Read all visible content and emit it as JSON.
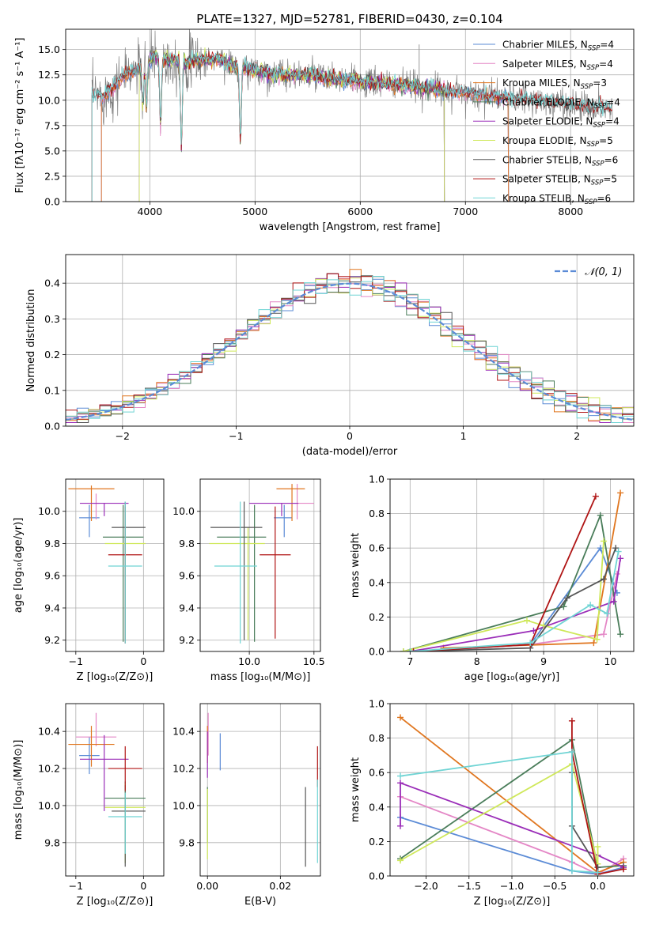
{
  "series_styles": [
    {
      "name": "Chabrier MILES",
      "color": "#5b8bd6"
    },
    {
      "name": "Salpeter MILES",
      "color": "#e487c6"
    },
    {
      "name": "Kroupa MILES",
      "color": "#e0761f"
    },
    {
      "name": "Chabrier ELODIE",
      "color": "#4a7d5a"
    },
    {
      "name": "Salpeter ELODIE",
      "color": "#9a2db8"
    },
    {
      "name": "Kroupa ELODIE",
      "color": "#cfe85a"
    },
    {
      "name": "Chabrier STELIB",
      "color": "#555555"
    },
    {
      "name": "Salpeter STELIB",
      "color": "#b01515"
    },
    {
      "name": "Kroupa STELIB",
      "color": "#6fd4d4"
    }
  ],
  "chart_data": [
    {
      "id": "spectrum",
      "type": "line",
      "title": "PLATE=1327, MJD=52781, FIBERID=0430, z=0.104",
      "xlabel": "wavelength [Angstrom, rest frame]",
      "ylabel": "Flux [fλ10⁻¹⁷ erg cm⁻² s⁻¹ A⁻¹]",
      "xlim": [
        3200,
        8600
      ],
      "ylim": [
        0,
        17
      ],
      "xticks": [
        4000,
        5000,
        6000,
        7000,
        8000
      ],
      "yticks": [
        0.0,
        2.5,
        5.0,
        7.5,
        10.0,
        12.5,
        15.0
      ],
      "legend_position": "top-right",
      "legend": [
        {
          "base": "Chabrier MILES, N",
          "sub": "SSP",
          "tail": "=4"
        },
        {
          "base": "Salpeter MILES, N",
          "sub": "SSP",
          "tail": "=4"
        },
        {
          "base": "Kroupa MILES, N",
          "sub": "SSP",
          "tail": "=3"
        },
        {
          "base": "Chabrier ELODIE, N",
          "sub": "SSP",
          "tail": "=4"
        },
        {
          "base": "Salpeter ELODIE, N",
          "sub": "SSP",
          "tail": "=4"
        },
        {
          "base": "Kroupa ELODIE, N",
          "sub": "SSP",
          "tail": "=5"
        },
        {
          "base": "Chabrier STELIB, N",
          "sub": "SSP",
          "tail": "=6"
        },
        {
          "base": "Salpeter STELIB, N",
          "sub": "SSP",
          "tail": "=5"
        },
        {
          "base": "Kroupa STELIB, N",
          "sub": "SSP",
          "tail": "=6"
        }
      ],
      "continuum": [
        [
          3450,
          10.6
        ],
        [
          3550,
          10.3
        ],
        [
          3650,
          11.2
        ],
        [
          3750,
          12.4
        ],
        [
          3850,
          12.8
        ],
        [
          3950,
          13.6
        ],
        [
          4050,
          14.3
        ],
        [
          4150,
          14.0
        ],
        [
          4250,
          13.9
        ],
        [
          4350,
          13.7
        ],
        [
          4450,
          14.0
        ],
        [
          4550,
          13.9
        ],
        [
          4650,
          14.1
        ],
        [
          4750,
          13.6
        ],
        [
          4850,
          13.2
        ],
        [
          4950,
          13.1
        ],
        [
          5050,
          12.9
        ],
        [
          5150,
          12.5
        ],
        [
          5250,
          12.6
        ],
        [
          5350,
          12.5
        ],
        [
          5450,
          12.5
        ],
        [
          5550,
          12.4
        ],
        [
          5650,
          12.2
        ],
        [
          5750,
          12.2
        ],
        [
          5850,
          12.0
        ],
        [
          5950,
          11.9
        ],
        [
          6050,
          11.7
        ],
        [
          6150,
          11.7
        ],
        [
          6250,
          11.6
        ],
        [
          6350,
          11.5
        ],
        [
          6450,
          11.4
        ],
        [
          6550,
          11.3
        ],
        [
          6650,
          11.1
        ],
        [
          6750,
          11.1
        ],
        [
          6850,
          10.9
        ],
        [
          6950,
          10.8
        ],
        [
          7050,
          10.7
        ],
        [
          7150,
          10.5
        ],
        [
          7250,
          10.4
        ],
        [
          7350,
          10.3
        ],
        [
          7450,
          10.2
        ],
        [
          7550,
          10.1
        ],
        [
          7650,
          9.9
        ],
        [
          7750,
          9.8
        ],
        [
          7850,
          9.7
        ],
        [
          7950,
          9.6
        ],
        [
          8050,
          9.5
        ],
        [
          8150,
          9.4
        ],
        [
          8250,
          9.3
        ],
        [
          8350,
          9.2
        ]
      ],
      "absorption_features": [
        [
          3934,
          4.5
        ],
        [
          3969,
          5.0
        ],
        [
          4102,
          7.5
        ],
        [
          4861,
          8.5
        ],
        [
          4300,
          9.5
        ]
      ],
      "model_coverage": {
        "MILES": [
          3540,
          7410
        ],
        "ELODIE": [
          3900,
          6800
        ],
        "STELIB": [
          3450,
          8400
        ]
      }
    },
    {
      "id": "residuals",
      "type": "histogram",
      "xlabel": "(data-model)/error",
      "ylabel": "Normed distribution",
      "xlim": [
        -2.5,
        2.5
      ],
      "ylim": [
        0,
        0.48
      ],
      "xticks": [
        -2,
        -1,
        0,
        1,
        2
      ],
      "yticks": [
        0.0,
        0.1,
        0.2,
        0.3,
        0.4
      ],
      "bin_width": 0.1,
      "reference_label": "𝒩(0, 1)",
      "reference_color": "#5b8bd6",
      "legend_position": "top-right",
      "perturbation": [
        0.02,
        -0.01,
        0.015,
        0.0,
        -0.02,
        0.01,
        0.025,
        -0.015,
        0.005,
        0.02
      ]
    },
    {
      "id": "age_vs_Z",
      "type": "errorbar",
      "xlabel": "Z [log₁₀(Z/Z⊙)]",
      "ylabel": "age  [log₁₀(age/yr)]",
      "xlim": [
        -1.15,
        0.3
      ],
      "ylim": [
        9.13,
        10.2
      ],
      "xticks": [
        -1,
        0
      ],
      "yticks": [
        9.2,
        9.4,
        9.6,
        9.8,
        10.0
      ],
      "points": [
        {
          "x": -0.8,
          "y": 9.96,
          "xerr": [
            0.15,
            0.15
          ],
          "yerr": [
            0.12,
            0.08
          ]
        },
        {
          "x": -0.7,
          "y": 10.05,
          "xerr": [
            0.05,
            0.05
          ],
          "yerr": [
            0.1,
            0.06
          ]
        },
        {
          "x": -0.77,
          "y": 10.14,
          "xerr": [
            0.34,
            0.34
          ],
          "yerr": [
            0.2,
            0.02
          ]
        },
        {
          "x": -0.3,
          "y": 9.84,
          "xerr": [
            0.3,
            0.3
          ],
          "yerr": [
            0.65,
            0.2
          ]
        },
        {
          "x": -0.58,
          "y": 10.05,
          "xerr": [
            0.36,
            0.36
          ],
          "yerr": [
            0.08,
            0.0
          ]
        },
        {
          "x": -0.27,
          "y": 9.8,
          "xerr": [
            0.3,
            0.3
          ],
          "yerr": [
            0.6,
            0.1
          ]
        },
        {
          "x": -0.27,
          "y": 9.9,
          "xerr": [
            0.2,
            0.3
          ],
          "yerr": [
            0.7,
            0.16
          ]
        },
        {
          "x": -0.27,
          "y": 9.73,
          "xerr": [
            0.25,
            0.25
          ],
          "yerr": [
            0.55,
            0.3
          ]
        },
        {
          "x": -0.27,
          "y": 9.66,
          "xerr": [
            0.25,
            0.25
          ],
          "yerr": [
            0.48,
            0.4
          ]
        }
      ]
    },
    {
      "id": "age_vs_mass",
      "type": "errorbar",
      "xlabel": "mass [log₁₀(M/M⊙)]",
      "ylabel": "",
      "xlim": [
        9.62,
        10.55
      ],
      "ylim": [
        9.13,
        10.2
      ],
      "xticks": [
        10.0,
        10.5
      ],
      "yticks": [
        9.2,
        9.4,
        9.6,
        9.8,
        10.0
      ],
      "points": [
        {
          "x": 10.27,
          "y": 9.96,
          "xerr": [
            0.08,
            0.06
          ],
          "yerr": [
            0.12,
            0.08
          ]
        },
        {
          "x": 10.37,
          "y": 10.05,
          "xerr": [
            0.13,
            0.13
          ],
          "yerr": [
            0.1,
            0.12
          ]
        },
        {
          "x": 10.33,
          "y": 10.14,
          "xerr": [
            0.12,
            0.1
          ],
          "yerr": [
            0.2,
            0.03
          ]
        },
        {
          "x": 10.04,
          "y": 9.84,
          "xerr": [
            0.29,
            0.09
          ],
          "yerr": [
            0.65,
            0.2
          ]
        },
        {
          "x": 10.25,
          "y": 10.05,
          "xerr": [
            0.25,
            0.13
          ],
          "yerr": [
            0.08,
            0.0
          ]
        },
        {
          "x": 9.99,
          "y": 9.8,
          "xerr": [
            0.3,
            0.13
          ],
          "yerr": [
            0.6,
            0.1
          ]
        },
        {
          "x": 9.96,
          "y": 9.9,
          "xerr": [
            0.26,
            0.14
          ],
          "yerr": [
            0.7,
            0.16
          ]
        },
        {
          "x": 10.2,
          "y": 9.73,
          "xerr": [
            0.12,
            0.12
          ],
          "yerr": [
            0.52,
            0.3
          ]
        },
        {
          "x": 9.93,
          "y": 9.66,
          "xerr": [
            0.2,
            0.13
          ],
          "yerr": [
            0.48,
            0.4
          ]
        }
      ]
    },
    {
      "id": "weight_vs_age",
      "type": "line",
      "xlabel": "age  [log₁₀(age/yr)]",
      "ylabel": "mass weight",
      "xlim": [
        6.7,
        10.35
      ],
      "ylim": [
        0,
        1.0
      ],
      "xticks": [
        7,
        8,
        9,
        10
      ],
      "yticks": [
        0.0,
        0.2,
        0.4,
        0.6,
        0.8,
        1.0
      ],
      "series": [
        {
          "x": [
            7.05,
            8.8,
            9.85,
            10.1
          ],
          "y": [
            0.0,
            0.04,
            0.6,
            0.34
          ]
        },
        {
          "x": [
            7.05,
            8.8,
            9.9,
            10.1
          ],
          "y": [
            0.0,
            0.04,
            0.1,
            0.45
          ]
        },
        {
          "x": [
            7.5,
            9.75,
            10.15
          ],
          "y": [
            0.02,
            0.05,
            0.92
          ]
        },
        {
          "x": [
            6.9,
            9.3,
            9.85,
            10.15
          ],
          "y": [
            0.0,
            0.26,
            0.79,
            0.1
          ]
        },
        {
          "x": [
            7.0,
            8.85,
            10.05,
            10.15
          ],
          "y": [
            0.0,
            0.12,
            0.29,
            0.54
          ]
        },
        {
          "x": [
            6.9,
            8.75,
            9.0,
            9.8,
            9.9
          ],
          "y": [
            0.0,
            0.18,
            0.15,
            0.07,
            0.64
          ]
        },
        {
          "x": [
            7.0,
            8.8,
            9.35,
            9.9,
            10.08
          ],
          "y": [
            0.0,
            0.02,
            0.31,
            0.42,
            0.6
          ]
        },
        {
          "x": [
            7.05,
            8.8,
            9.78
          ],
          "y": [
            0.0,
            0.04,
            0.9
          ]
        },
        {
          "x": [
            7.0,
            8.8,
            9.7,
            9.95,
            10.12
          ],
          "y": [
            0.0,
            0.05,
            0.27,
            0.22,
            0.58
          ]
        }
      ]
    },
    {
      "id": "mass_vs_Z",
      "type": "errorbar",
      "xlabel": "Z [log₁₀(Z/Z⊙)]",
      "ylabel": "mass [log₁₀(M/M⊙)]",
      "xlim": [
        -1.15,
        0.3
      ],
      "ylim": [
        9.62,
        10.55
      ],
      "xticks": [
        -1,
        0
      ],
      "yticks": [
        9.8,
        10.0,
        10.2,
        10.4
      ],
      "points": [
        {
          "x": -0.8,
          "y": 10.27,
          "xerr": [
            0.15,
            0.15
          ],
          "yerr": [
            0.1,
            0.1
          ]
        },
        {
          "x": -0.7,
          "y": 10.37,
          "xerr": [
            0.3,
            0.3
          ],
          "yerr": [
            0.05,
            0.13
          ]
        },
        {
          "x": -0.77,
          "y": 10.33,
          "xerr": [
            0.34,
            0.34
          ],
          "yerr": [
            0.12,
            0.1
          ]
        },
        {
          "x": -0.27,
          "y": 10.04,
          "xerr": [
            0.3,
            0.3
          ],
          "yerr": [
            0.35,
            0.09
          ]
        },
        {
          "x": -0.58,
          "y": 10.25,
          "xerr": [
            0.36,
            0.36
          ],
          "yerr": [
            0.28,
            0.13
          ]
        },
        {
          "x": -0.27,
          "y": 9.99,
          "xerr": [
            0.3,
            0.3
          ],
          "yerr": [
            0.3,
            0.13
          ]
        },
        {
          "x": -0.27,
          "y": 9.97,
          "xerr": [
            0.2,
            0.3
          ],
          "yerr": [
            0.3,
            0.14
          ]
        },
        {
          "x": -0.27,
          "y": 10.2,
          "xerr": [
            0.25,
            0.25
          ],
          "yerr": [
            0.12,
            0.12
          ]
        },
        {
          "x": -0.27,
          "y": 9.94,
          "xerr": [
            0.25,
            0.25
          ],
          "yerr": [
            0.2,
            0.13
          ]
        }
      ]
    },
    {
      "id": "mass_vs_ebv",
      "type": "errorbar",
      "xlabel": "E(B-V)",
      "ylabel": "",
      "xlim": [
        -0.002,
        0.031
      ],
      "ylim": [
        9.62,
        10.55
      ],
      "xticks": [
        0.0,
        0.02
      ],
      "yticks": [
        9.8,
        10.0,
        10.2,
        10.4
      ],
      "points": [
        {
          "x": 0.0035,
          "y": 10.27,
          "xerr": [
            0,
            0
          ],
          "yerr": [
            0.08,
            0.12
          ]
        },
        {
          "x": 0.0002,
          "y": 10.37,
          "xerr": [
            0,
            0
          ],
          "yerr": [
            0.1,
            0.13
          ]
        },
        {
          "x": 0.0,
          "y": 10.33,
          "xerr": [
            0,
            0
          ],
          "yerr": [
            0.1,
            0.1
          ]
        },
        {
          "x": 0.0,
          "y": 10.0,
          "xerr": [
            0,
            0
          ],
          "yerr": [
            0.2,
            0.1
          ]
        },
        {
          "x": 0.0,
          "y": 10.25,
          "xerr": [
            0,
            0
          ],
          "yerr": [
            0.1,
            0.15
          ]
        },
        {
          "x": 0.0,
          "y": 9.99,
          "xerr": [
            0,
            0
          ],
          "yerr": [
            0.28,
            0.1
          ]
        },
        {
          "x": 0.0269,
          "y": 9.97,
          "xerr": [
            0,
            0
          ],
          "yerr": [
            0.3,
            0.13
          ]
        },
        {
          "x": 0.0302,
          "y": 10.2,
          "xerr": [
            0,
            0
          ],
          "yerr": [
            0.1,
            0.12
          ]
        },
        {
          "x": 0.0302,
          "y": 9.94,
          "xerr": [
            0,
            0
          ],
          "yerr": [
            0.25,
            0.2
          ]
        }
      ]
    },
    {
      "id": "weight_vs_Z",
      "type": "line",
      "xlabel": "Z [log₁₀(Z/Z⊙)]",
      "ylabel": "mass weight",
      "xlim": [
        -2.42,
        0.42
      ],
      "ylim": [
        0,
        1.0
      ],
      "xticks": [
        -2.0,
        -1.5,
        -1.0,
        -0.5,
        0.0
      ],
      "yticks": [
        0.0,
        0.2,
        0.4,
        0.6,
        0.8,
        1.0
      ],
      "series": [
        {
          "x": [
            -2.3,
            -0.3,
            0.0,
            0.3
          ],
          "y": [
            0.34,
            0.03,
            0.01,
            0.05
          ]
        },
        {
          "x": [
            -2.3,
            -0.3,
            0.0,
            0.3
          ],
          "y": [
            0.46,
            0.08,
            0.01,
            0.1
          ]
        },
        {
          "x": [
            -2.3,
            0.0,
            0.3
          ],
          "y": [
            0.92,
            0.02,
            0.08
          ]
        },
        {
          "x": [
            -2.3,
            -0.3,
            0.0,
            0.3
          ],
          "y": [
            0.1,
            0.79,
            0.05,
            0.06
          ]
        },
        {
          "x": [
            -2.3,
            -2.3,
            0.0,
            0.3
          ],
          "y": [
            0.29,
            0.54,
            0.12,
            0.05
          ]
        },
        {
          "x": [
            -2.3,
            -0.3,
            0.0,
            0.0
          ],
          "y": [
            0.09,
            0.65,
            0.07,
            0.17
          ]
        },
        {
          "x": [
            -0.3,
            -0.3,
            0.0,
            0.0
          ],
          "y": [
            0.6,
            0.29,
            0.05,
            0.02
          ]
        },
        {
          "x": [
            -0.3,
            -0.3,
            0.0,
            0.3
          ],
          "y": [
            0.9,
            0.72,
            0.01,
            0.04
          ]
        },
        {
          "x": [
            -2.3,
            -0.3,
            -0.3,
            0.0
          ],
          "y": [
            0.58,
            0.72,
            0.03,
            0.02
          ]
        }
      ]
    }
  ]
}
